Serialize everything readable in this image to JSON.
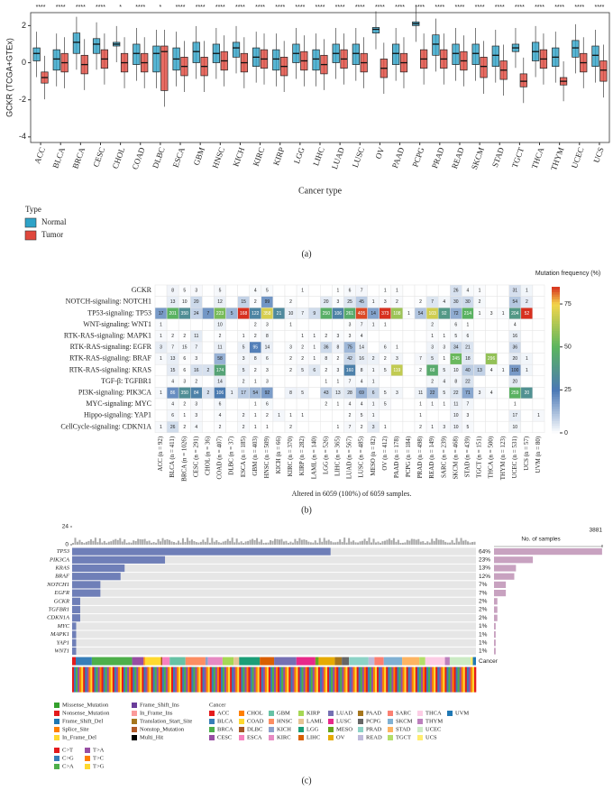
{
  "chart_data": [
    {
      "type": "box",
      "panel_label": "(a)",
      "y_label": "GCKR (TCGA+GTEx)",
      "x_label": "Cancer type",
      "legend_title": "Type",
      "categories": [
        "ACC",
        "BLCA",
        "BRCA",
        "CESC",
        "CHOL",
        "COAD",
        "DLBC",
        "ESCA",
        "GBM",
        "HNSC",
        "KICH",
        "KIRC",
        "KIRP",
        "LGG",
        "LIHC",
        "LUAD",
        "LUSC",
        "OV",
        "PAAD",
        "PCPG",
        "PRAD",
        "READ",
        "SKCM",
        "STAD",
        "TGCT",
        "THCA",
        "THYM",
        "UCEC",
        "UCS"
      ],
      "significance": [
        "****",
        "****",
        "****",
        "****",
        "*",
        "****",
        "*",
        "****",
        "****",
        "****",
        "****",
        "****",
        "****",
        "****",
        "****",
        "****",
        "****",
        "****",
        "****",
        "****",
        "****",
        "****",
        "****",
        "****",
        "****",
        "****",
        "****",
        "****",
        "****"
      ],
      "series": [
        {
          "name": "Normal",
          "color": "#2ea3c8",
          "median": [
            0.5,
            0.2,
            1.1,
            1.0,
            1.0,
            0.5,
            0.5,
            0.2,
            0.6,
            0.5,
            0.8,
            0.3,
            0.2,
            0.5,
            0.2,
            0.5,
            0.5,
            1.8,
            0.5,
            2.1,
            1.0,
            0.5,
            0.5,
            0.4,
            0.8,
            0.6,
            0.3,
            0.8,
            0.4
          ],
          "q1": [
            0.1,
            -0.4,
            0.5,
            0.5,
            0.9,
            -0.1,
            -0.5,
            -0.4,
            0.0,
            0.0,
            0.3,
            -0.2,
            -0.4,
            0.0,
            -0.4,
            0.0,
            -0.1,
            1.6,
            -0.1,
            2.0,
            0.4,
            -0.1,
            -0.1,
            -0.2,
            0.6,
            0.1,
            -0.2,
            0.3,
            -0.2
          ],
          "q3": [
            0.8,
            0.7,
            1.6,
            1.3,
            1.1,
            1.0,
            0.9,
            0.8,
            1.1,
            1.0,
            1.1,
            0.8,
            0.7,
            1.0,
            0.7,
            1.0,
            1.0,
            1.9,
            1.0,
            2.2,
            1.5,
            1.0,
            1.0,
            0.9,
            1.0,
            1.1,
            0.8,
            1.2,
            0.9
          ]
        },
        {
          "name": "Tumor",
          "color": "#e0473c",
          "median": [
            -0.8,
            0.0,
            -0.1,
            0.2,
            0.0,
            0.0,
            0.6,
            -0.2,
            -0.2,
            0.1,
            0.0,
            0.2,
            -0.2,
            0.1,
            -0.1,
            0.2,
            0.0,
            -0.3,
            0.0,
            0.2,
            0.2,
            0.1,
            -0.2,
            -0.4,
            -1.0,
            0.2,
            -1.0,
            0.0,
            -0.4
          ],
          "q1": [
            -1.1,
            -0.5,
            -0.6,
            -0.3,
            -0.5,
            -0.5,
            -1.5,
            -0.7,
            -0.7,
            -0.4,
            -0.5,
            -0.3,
            -0.7,
            -0.4,
            -0.6,
            -0.3,
            -0.5,
            -0.8,
            -0.5,
            -0.3,
            -0.3,
            -0.4,
            -0.8,
            -0.9,
            -1.3,
            -0.3,
            -1.2,
            -0.5,
            -1.0
          ],
          "q3": [
            -0.5,
            0.5,
            0.4,
            0.7,
            0.5,
            0.5,
            0.9,
            0.3,
            0.3,
            0.6,
            0.5,
            0.7,
            0.3,
            0.6,
            0.4,
            0.7,
            0.5,
            0.2,
            0.5,
            0.7,
            0.7,
            0.6,
            0.3,
            0.1,
            -0.6,
            0.7,
            -0.8,
            0.5,
            0.1
          ]
        }
      ],
      "ylim": [
        -4.3,
        2.7
      ],
      "yticks": [
        -4,
        -2,
        0,
        2
      ]
    },
    {
      "type": "heatmap",
      "panel_label": "(b)",
      "colorbar_title": "Mutation frequency (%)",
      "caption": "Altered in 6059 (100%) of 6059 samples.",
      "total_samples": 6059,
      "rows": [
        "GCKR",
        "NOTCH-signaling: NOTCH1",
        "TP53-signaling: TP53",
        "WNT-signaling: WNT1",
        "RTK-RAS-signaling: MAPK1",
        "RTK-RAS-signaling: EGFR",
        "RTK-RAS-signaling: BRAF",
        "RTK-RAS-signaling: KRAS",
        "TGF-β: TGFBR1",
        "PI3K-signaling: PIK3CA",
        "MYC-signaling: MYC",
        "Hippo-signaling: YAP1",
        "CellCycle-signaling: CDKN1A"
      ],
      "categories": [
        "ACC (n = 92)",
        "BLCA (n = 411)",
        "BRCA (n = 1026)",
        "CESC (n = 291)",
        "CHOL (n = 36)",
        "COAD (n = 407)",
        "DLBC (n = 37)",
        "ESCA (n = 185)",
        "GBM (n = 403)",
        "HNSC (n = 509)",
        "KICH (n = 66)",
        "KIRC (n = 370)",
        "KIRP (n = 282)",
        "LAML (n = 140)",
        "LGG (n = 526)",
        "LIHC (n = 365)",
        "LUAD (n = 567)",
        "LUSC (n = 485)",
        "MESO (n = 82)",
        "OV (n = 412)",
        "PAAD (n = 178)",
        "PCPG (n = 184)",
        "PRAD (n = 498)",
        "READ (n = 149)",
        "SARC (n = 239)",
        "SKCM (n = 468)",
        "STAD (n = 439)",
        "TGCT (n = 151)",
        "THCA (n = 500)",
        "THYM (n = 123)",
        "UCEC (n = 531)",
        "UCS (n = 57)",
        "UVM (n = 80)"
      ],
      "n": [
        92,
        411,
        1026,
        291,
        36,
        407,
        37,
        185,
        403,
        509,
        66,
        370,
        282,
        140,
        526,
        365,
        567,
        485,
        82,
        412,
        178,
        184,
        498,
        149,
        239,
        468,
        439,
        151,
        500,
        123,
        531,
        57,
        80
      ],
      "values": [
        [
          null,
          8,
          5,
          3,
          null,
          5,
          null,
          null,
          4,
          5,
          null,
          null,
          1,
          null,
          null,
          1,
          6,
          7,
          null,
          1,
          1,
          null,
          null,
          null,
          null,
          26,
          4,
          1,
          null,
          null,
          31,
          1,
          null
        ],
        [
          null,
          13,
          10,
          20,
          null,
          12,
          null,
          15,
          2,
          99,
          null,
          2,
          null,
          null,
          20,
          3,
          25,
          45,
          1,
          3,
          2,
          null,
          2,
          7,
          4,
          30,
          30,
          2,
          null,
          null,
          54,
          2,
          null
        ],
        [
          17,
          201,
          350,
          24,
          7,
          223,
          5,
          168,
          122,
          358,
          21,
          10,
          7,
          9,
          250,
          106,
          261,
          405,
          14,
          373,
          108,
          1,
          54,
          103,
          92,
          72,
          214,
          1,
          3,
          1,
          204,
          52,
          null
        ],
        [
          1,
          null,
          null,
          null,
          null,
          10,
          null,
          null,
          2,
          3,
          null,
          1,
          null,
          null,
          null,
          null,
          3,
          7,
          1,
          1,
          null,
          null,
          null,
          2,
          null,
          6,
          1,
          null,
          null,
          null,
          4,
          null,
          null
        ],
        [
          1,
          2,
          2,
          11,
          null,
          2,
          null,
          1,
          2,
          8,
          null,
          null,
          1,
          1,
          2,
          3,
          3,
          4,
          null,
          null,
          null,
          null,
          null,
          1,
          1,
          5,
          6,
          null,
          null,
          null,
          16,
          null,
          null
        ],
        [
          3,
          7,
          15,
          7,
          null,
          11,
          null,
          5,
          95,
          14,
          null,
          3,
          2,
          1,
          36,
          8,
          75,
          14,
          null,
          6,
          1,
          null,
          null,
          3,
          3,
          34,
          21,
          null,
          null,
          null,
          36,
          null,
          null
        ],
        [
          1,
          13,
          6,
          3,
          null,
          58,
          null,
          3,
          8,
          6,
          null,
          2,
          2,
          1,
          8,
          2,
          42,
          16,
          2,
          2,
          3,
          null,
          7,
          5,
          1,
          245,
          18,
          null,
          296,
          null,
          20,
          1,
          null
        ],
        [
          null,
          15,
          6,
          16,
          2,
          174,
          null,
          5,
          2,
          3,
          null,
          2,
          5,
          6,
          2,
          3,
          160,
          8,
          1,
          5,
          119,
          null,
          2,
          68,
          5,
          10,
          40,
          13,
          4,
          1,
          100,
          1,
          null
        ],
        [
          null,
          4,
          3,
          2,
          null,
          14,
          null,
          2,
          1,
          3,
          null,
          null,
          null,
          null,
          1,
          1,
          7,
          4,
          1,
          null,
          null,
          null,
          null,
          2,
          4,
          8,
          22,
          null,
          null,
          null,
          20,
          null,
          null
        ],
        [
          1,
          86,
          350,
          84,
          2,
          106,
          1,
          17,
          54,
          92,
          null,
          8,
          5,
          null,
          43,
          13,
          28,
          69,
          6,
          5,
          3,
          null,
          11,
          22,
          5,
          22,
          71,
          3,
          4,
          null,
          259,
          20,
          null
        ],
        [
          null,
          4,
          2,
          3,
          null,
          6,
          null,
          null,
          1,
          6,
          null,
          null,
          null,
          null,
          2,
          1,
          4,
          4,
          1,
          5,
          null,
          null,
          1,
          1,
          1,
          11,
          7,
          null,
          null,
          null,
          1,
          null,
          null
        ],
        [
          null,
          6,
          1,
          3,
          null,
          4,
          null,
          2,
          1,
          2,
          1,
          1,
          1,
          null,
          null,
          null,
          2,
          5,
          1,
          null,
          null,
          null,
          1,
          null,
          null,
          10,
          3,
          null,
          null,
          null,
          17,
          null,
          1
        ],
        [
          1,
          26,
          2,
          4,
          null,
          2,
          null,
          2,
          1,
          1,
          null,
          2,
          null,
          null,
          null,
          1,
          7,
          2,
          3,
          1,
          null,
          null,
          2,
          1,
          3,
          10,
          5,
          null,
          null,
          null,
          10,
          null,
          null
        ]
      ],
      "zlim": [
        0,
        85
      ],
      "zticks": [
        0,
        25,
        50,
        75
      ],
      "colors": [
        "#ffffff",
        "#4a78b5",
        "#5bb55e",
        "#f3d54b",
        "#d7301f"
      ]
    },
    {
      "type": "oncoplot",
      "panel_label": "(c)",
      "genes": [
        "TP53",
        "PIK3CA",
        "KRAS",
        "BRAF",
        "NOTCH1",
        "EGFR",
        "GCKR",
        "TGFBR1",
        "CDKN1A",
        "MYC",
        "MAPK1",
        "YAP1",
        "WNT1"
      ],
      "values": [
        64,
        23,
        13,
        12,
        7,
        7,
        2,
        2,
        2,
        1,
        1,
        1,
        1
      ],
      "value_labels": [
        "64%",
        "23%",
        "13%",
        "12%",
        "7%",
        "7%",
        "2%",
        "2%",
        "2%",
        "1%",
        "1%",
        "1%",
        "1%"
      ],
      "mark_color": "#6f7fb8",
      "bar_color": "#c8a2c0",
      "x_label": "No. of samples",
      "xlim": [
        0,
        3881
      ],
      "xticks": [
        3881
      ],
      "tmb_lim": [
        0,
        24
      ],
      "tmb_ticks": [
        0,
        24
      ],
      "annotation_label": "Cancer",
      "variant_types": [
        {
          "name": "Missense_Mutation",
          "color": "#33a02c"
        },
        {
          "name": "Nonsense_Mutation",
          "color": "#e31a1c"
        },
        {
          "name": "Frame_Shift_Del",
          "color": "#1f78b4"
        },
        {
          "name": "Splice_Site",
          "color": "#ff7f00"
        },
        {
          "name": "In_Frame_Del",
          "color": "#ffd92f"
        },
        {
          "name": "Frame_Shift_Ins",
          "color": "#6a3d9a"
        },
        {
          "name": "In_Frame_Ins",
          "color": "#fb9a99"
        },
        {
          "name": "Translation_Start_Site",
          "color": "#a6761d"
        },
        {
          "name": "Nonstop_Mutation",
          "color": "#b15928"
        },
        {
          "name": "Multi_Hit",
          "color": "#000000"
        }
      ],
      "titv": [
        {
          "name": "C>T",
          "color": "#e41a1c"
        },
        {
          "name": "C>G",
          "color": "#377eb8"
        },
        {
          "name": "C>A",
          "color": "#4daf4a"
        },
        {
          "name": "T>A",
          "color": "#984ea3"
        },
        {
          "name": "T>C",
          "color": "#ff7f00"
        },
        {
          "name": "T>G",
          "color": "#ffd92f"
        }
      ],
      "cancer_legend_title": "Cancer",
      "cancers": [
        "ACC",
        "BLCA",
        "BRCA",
        "CESC",
        "CHOL",
        "COAD",
        "DLBC",
        "ESCA",
        "GBM",
        "HNSC",
        "KICH",
        "KIRC",
        "KIRP",
        "LAML",
        "LGG",
        "LIHC",
        "LUAD",
        "LUSC",
        "MESO",
        "OV",
        "PAAD",
        "PCPG",
        "PRAD",
        "READ",
        "SARC",
        "SKCM",
        "STAD",
        "TGCT",
        "THCA",
        "THYM",
        "UCEC",
        "UCS",
        "UVM"
      ],
      "cancer_colors": [
        "#e41a1c",
        "#377eb8",
        "#4daf4a",
        "#984ea3",
        "#ff7f00",
        "#ffd92f",
        "#a65628",
        "#f781bf",
        "#66c2a5",
        "#fc8d62",
        "#8da0cb",
        "#e78ac3",
        "#a6d854",
        "#e5c494",
        "#1b9e77",
        "#d95f02",
        "#7570b3",
        "#e7298a",
        "#66a61e",
        "#e6ab02",
        "#a6761d",
        "#666666",
        "#8dd3c7",
        "#bebada",
        "#fb8072",
        "#80b1d3",
        "#fdb462",
        "#b3de69",
        "#fccde5",
        "#bc80bd",
        "#ccebc5",
        "#ffed6f",
        "#1f78b4"
      ]
    }
  ]
}
